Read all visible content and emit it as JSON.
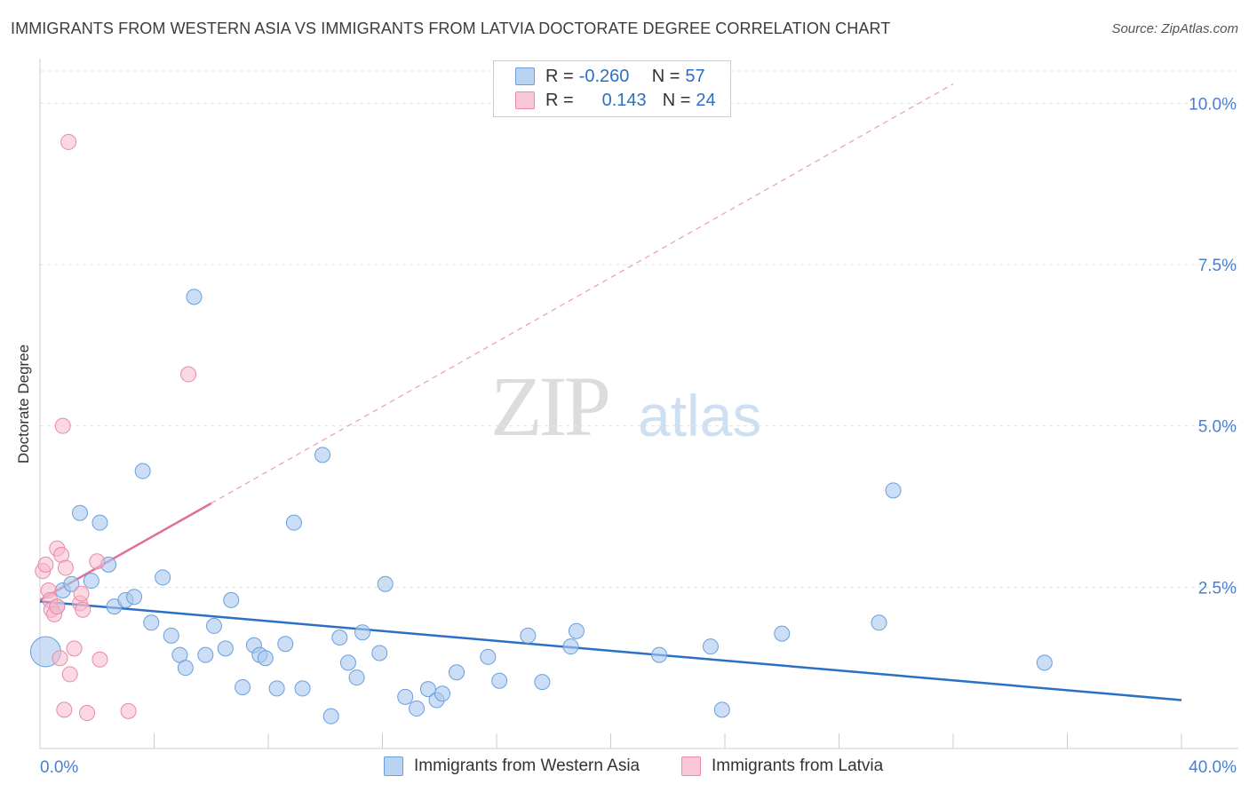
{
  "header": {
    "title": "IMMIGRANTS FROM WESTERN ASIA VS IMMIGRANTS FROM LATVIA DOCTORATE DEGREE CORRELATION CHART",
    "source": "Source: ZipAtlas.com"
  },
  "watermark": {
    "zip": "ZIP",
    "atlas": "atlas"
  },
  "legend": {
    "rows": [
      {
        "r_label": "R = ",
        "r_value": "-0.260",
        "n_label": "N = ",
        "n_value": "57"
      },
      {
        "r_label": "R = ",
        "r_value": "0.143",
        "n_label": "N = ",
        "n_value": "24"
      }
    ]
  },
  "colors": {
    "blue_fill": "#a8c8ef",
    "blue_stroke": "#6a9fdc",
    "blue_line": "#2b6fc6",
    "pink_fill": "#f7b8cb",
    "pink_stroke": "#e98aa8",
    "pink_line": "#e0709a",
    "tick_label": "#4a7fcf",
    "grid": "#e3e3e3"
  },
  "chart_data": {
    "type": "scatter",
    "title": "IMMIGRANTS FROM WESTERN ASIA VS IMMIGRANTS FROM LATVIA DOCTORATE DEGREE CORRELATION CHART",
    "xlabel": "",
    "ylabel": "Doctorate Degree",
    "xlim": [
      0,
      40
    ],
    "ylim": [
      0,
      10.5
    ],
    "x_tick_labels": [
      "0.0%",
      "40.0%"
    ],
    "y_ticks": [
      2.5,
      5.0,
      7.5,
      10.0
    ],
    "y_tick_labels": [
      "2.5%",
      "5.0%",
      "7.5%",
      "10.0%"
    ],
    "grid": "horizontal dashed",
    "series": [
      {
        "name": "Immigrants from Western Asia",
        "color": "#a8c8ef",
        "trend": {
          "x": [
            0,
            40
          ],
          "y": [
            2.28,
            0.75
          ]
        },
        "points": [
          {
            "x": 0.2,
            "y": 1.5,
            "big": true
          },
          {
            "x": 0.6,
            "y": 2.2
          },
          {
            "x": 0.8,
            "y": 2.45
          },
          {
            "x": 1.1,
            "y": 2.55
          },
          {
            "x": 1.4,
            "y": 3.65
          },
          {
            "x": 1.8,
            "y": 2.6
          },
          {
            "x": 2.1,
            "y": 3.5
          },
          {
            "x": 2.4,
            "y": 2.85
          },
          {
            "x": 2.6,
            "y": 2.2
          },
          {
            "x": 3.0,
            "y": 2.3
          },
          {
            "x": 3.3,
            "y": 2.35
          },
          {
            "x": 3.6,
            "y": 4.3
          },
          {
            "x": 3.9,
            "y": 1.95
          },
          {
            "x": 4.3,
            "y": 2.65
          },
          {
            "x": 4.6,
            "y": 1.75
          },
          {
            "x": 4.9,
            "y": 1.45
          },
          {
            "x": 5.1,
            "y": 1.25
          },
          {
            "x": 5.4,
            "y": 7.0
          },
          {
            "x": 5.8,
            "y": 1.45
          },
          {
            "x": 6.1,
            "y": 1.9
          },
          {
            "x": 6.5,
            "y": 1.55
          },
          {
            "x": 6.7,
            "y": 2.3
          },
          {
            "x": 7.1,
            "y": 0.95
          },
          {
            "x": 7.5,
            "y": 1.6
          },
          {
            "x": 7.7,
            "y": 1.45
          },
          {
            "x": 7.9,
            "y": 1.4
          },
          {
            "x": 8.3,
            "y": 0.93
          },
          {
            "x": 8.6,
            "y": 1.62
          },
          {
            "x": 8.9,
            "y": 3.5
          },
          {
            "x": 9.2,
            "y": 0.93
          },
          {
            "x": 9.9,
            "y": 4.55
          },
          {
            "x": 10.2,
            "y": 0.5
          },
          {
            "x": 10.5,
            "y": 1.72
          },
          {
            "x": 10.8,
            "y": 1.33
          },
          {
            "x": 11.1,
            "y": 1.1
          },
          {
            "x": 11.3,
            "y": 1.8
          },
          {
            "x": 11.9,
            "y": 1.48
          },
          {
            "x": 12.1,
            "y": 2.55
          },
          {
            "x": 12.8,
            "y": 0.8
          },
          {
            "x": 13.2,
            "y": 0.62
          },
          {
            "x": 13.6,
            "y": 0.92
          },
          {
            "x": 13.9,
            "y": 0.75
          },
          {
            "x": 14.1,
            "y": 0.85
          },
          {
            "x": 14.6,
            "y": 1.18
          },
          {
            "x": 15.7,
            "y": 1.42
          },
          {
            "x": 16.1,
            "y": 1.05
          },
          {
            "x": 17.1,
            "y": 1.75
          },
          {
            "x": 17.6,
            "y": 1.03
          },
          {
            "x": 18.6,
            "y": 1.58
          },
          {
            "x": 18.8,
            "y": 1.82
          },
          {
            "x": 21.7,
            "y": 1.45
          },
          {
            "x": 23.5,
            "y": 1.58
          },
          {
            "x": 23.9,
            "y": 0.6
          },
          {
            "x": 26.0,
            "y": 1.78
          },
          {
            "x": 29.4,
            "y": 1.95
          },
          {
            "x": 29.9,
            "y": 4.0
          },
          {
            "x": 35.2,
            "y": 1.33
          }
        ]
      },
      {
        "name": "Immigrants from Latvia",
        "color": "#f7b8cb",
        "trend": {
          "x": [
            0,
            6.0
          ],
          "y": [
            2.3,
            3.8
          ]
        },
        "trend_extension": {
          "x": [
            6.0,
            32.0
          ],
          "y": [
            3.8,
            10.3
          ]
        },
        "points": [
          {
            "x": 0.1,
            "y": 2.75
          },
          {
            "x": 0.2,
            "y": 2.85
          },
          {
            "x": 0.3,
            "y": 2.45
          },
          {
            "x": 0.35,
            "y": 2.3
          },
          {
            "x": 0.4,
            "y": 2.15
          },
          {
            "x": 0.5,
            "y": 2.08
          },
          {
            "x": 0.6,
            "y": 2.2
          },
          {
            "x": 0.6,
            "y": 3.1
          },
          {
            "x": 0.7,
            "y": 1.4
          },
          {
            "x": 0.75,
            "y": 3.0
          },
          {
            "x": 0.8,
            "y": 5.0
          },
          {
            "x": 0.85,
            "y": 0.6
          },
          {
            "x": 0.9,
            "y": 2.8
          },
          {
            "x": 1.0,
            "y": 9.4
          },
          {
            "x": 1.05,
            "y": 1.15
          },
          {
            "x": 1.2,
            "y": 1.55
          },
          {
            "x": 1.4,
            "y": 2.25
          },
          {
            "x": 1.45,
            "y": 2.4
          },
          {
            "x": 1.5,
            "y": 2.15
          },
          {
            "x": 1.65,
            "y": 0.55
          },
          {
            "x": 2.0,
            "y": 2.9
          },
          {
            "x": 2.1,
            "y": 1.38
          },
          {
            "x": 3.1,
            "y": 0.58
          },
          {
            "x": 5.2,
            "y": 5.8
          }
        ]
      }
    ]
  }
}
